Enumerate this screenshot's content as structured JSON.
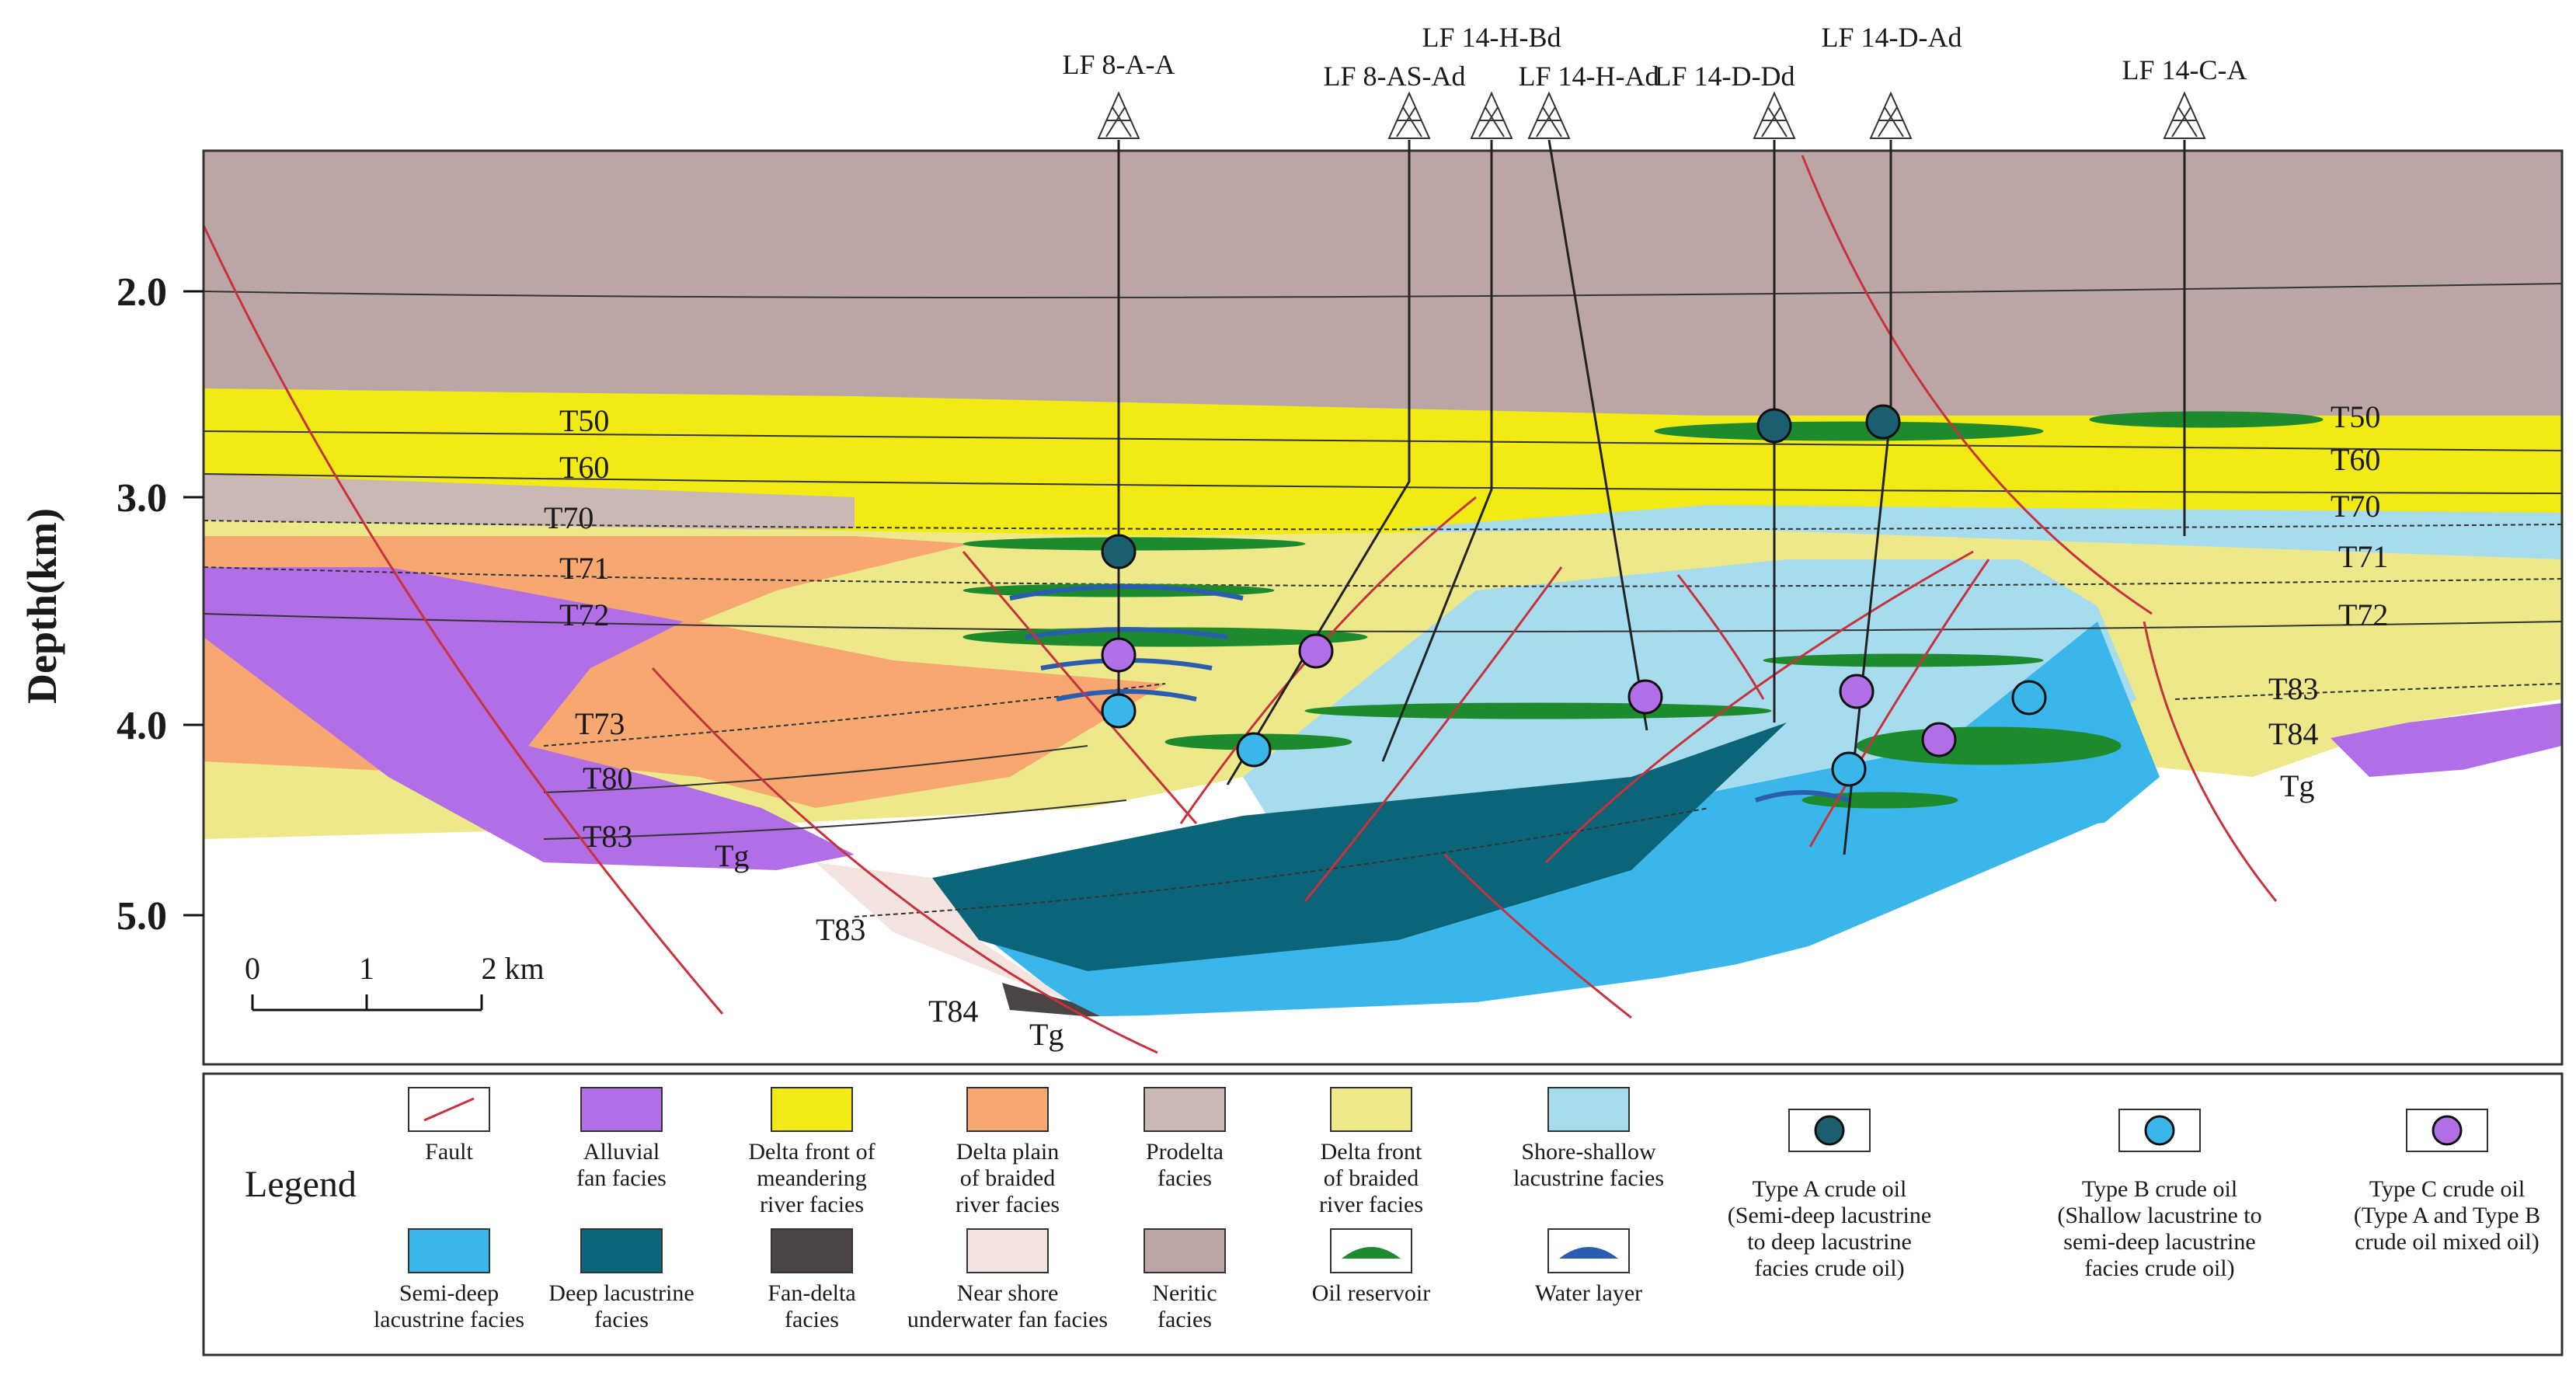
{
  "y_axis": {
    "label": "Depth(km)",
    "ticks": [
      "2.0",
      "3.0",
      "4.0",
      "5.0"
    ]
  },
  "scale_bar": {
    "labels": [
      "0",
      "1",
      "2 km"
    ]
  },
  "wells": [
    {
      "id": "w1",
      "name": "LF 8-A-A"
    },
    {
      "id": "w2",
      "name": "LF 8-AS-Ad"
    },
    {
      "id": "w3",
      "name": "LF 14-H-Bd"
    },
    {
      "id": "w4",
      "name": "LF 14-H-Ad"
    },
    {
      "id": "w5",
      "name": "LF 14-D-Dd"
    },
    {
      "id": "w6",
      "name": "LF 14-D-Ad"
    },
    {
      "id": "w7",
      "name": "LF 14-C-A"
    }
  ],
  "horizons": {
    "left": [
      "T50",
      "T60",
      "T70",
      "T71",
      "T72",
      "T73",
      "T80",
      "T83",
      "Tg"
    ],
    "bottom": [
      "T83",
      "T84",
      "Tg"
    ],
    "right": [
      "T50",
      "T60",
      "T70",
      "T71",
      "T72",
      "T83",
      "T84",
      "Tg"
    ]
  },
  "legend": {
    "title": "Legend",
    "items": [
      {
        "key": "fault",
        "label_lines": [
          "Fault"
        ],
        "color": "#c8323c"
      },
      {
        "key": "alluvial",
        "label_lines": [
          "Alluvial",
          "fan facies"
        ],
        "color": "#b26ee6"
      },
      {
        "key": "meander_front",
        "label_lines": [
          "Delta front of",
          "meandering",
          "river facies"
        ],
        "color": "#f2ea14"
      },
      {
        "key": "braided_plain",
        "label_lines": [
          "Delta plain",
          "of braided",
          "river facies"
        ],
        "color": "#f7a870"
      },
      {
        "key": "prodelta",
        "label_lines": [
          "Prodelta",
          "facies"
        ],
        "color": "#c9b8b4"
      },
      {
        "key": "braided_front",
        "label_lines": [
          "Delta front",
          "of braided",
          "river facies"
        ],
        "color": "#ede98a"
      },
      {
        "key": "shore_shallow",
        "label_lines": [
          "Shore-shallow",
          "lacustrine facies"
        ],
        "color": "#a7dbee"
      },
      {
        "key": "type_a",
        "label_lines": [
          "Type A crude oil",
          "(Semi-deep lacustrine",
          "to deep lacustrine",
          "facies crude oil)"
        ],
        "color": "#1b5e70"
      },
      {
        "key": "type_b",
        "label_lines": [
          "Type B crude oil",
          "(Shallow lacustrine to",
          "semi-deep lacustrine",
          "facies crude oil)"
        ],
        "color": "#3bb6ea"
      },
      {
        "key": "type_c",
        "label_lines": [
          "Type C crude oil",
          "(Type A and Type B",
          "crude oil mixed oil)"
        ],
        "color": "#b26ee6"
      },
      {
        "key": "semi_deep",
        "label_lines": [
          "Semi-deep",
          "lacustrine facies"
        ],
        "color": "#3bb6ea"
      },
      {
        "key": "deep",
        "label_lines": [
          "Deep lacustrine",
          "facies"
        ],
        "color": "#0c6478"
      },
      {
        "key": "fan_delta",
        "label_lines": [
          "Fan-delta",
          "facies"
        ],
        "color": "#4a4445"
      },
      {
        "key": "near_shore",
        "label_lines": [
          "Near shore",
          "underwater fan facies"
        ],
        "color": "#f4e4e0"
      },
      {
        "key": "neritic",
        "label_lines": [
          "Neritic",
          "facies"
        ],
        "color": "#bba6a5"
      },
      {
        "key": "oil_reservoir",
        "label_lines": [
          "Oil reservoir"
        ],
        "color": "#1e8a2e"
      },
      {
        "key": "water_layer",
        "label_lines": [
          "Water layer"
        ],
        "color": "#2a5cb0"
      }
    ]
  },
  "colors": {
    "neritic": "#bba6a5",
    "meander_front": "#f2ea14",
    "prodelta": "#c9b8b4",
    "braided_plain": "#f7a870",
    "alluvial": "#b26ee6",
    "braided_front": "#ede98a",
    "shore_shallow": "#a7dbee",
    "semi_deep": "#3bb6ea",
    "deep": "#0c6478",
    "fan_delta": "#4a4445",
    "near_shore": "#f4e4e0",
    "fault": "#c8323c",
    "oil": "#1e8a2e",
    "water": "#2a5cb0",
    "type_a": "#1b5e70",
    "type_b": "#3bb6ea",
    "type_c": "#b26ee6"
  }
}
